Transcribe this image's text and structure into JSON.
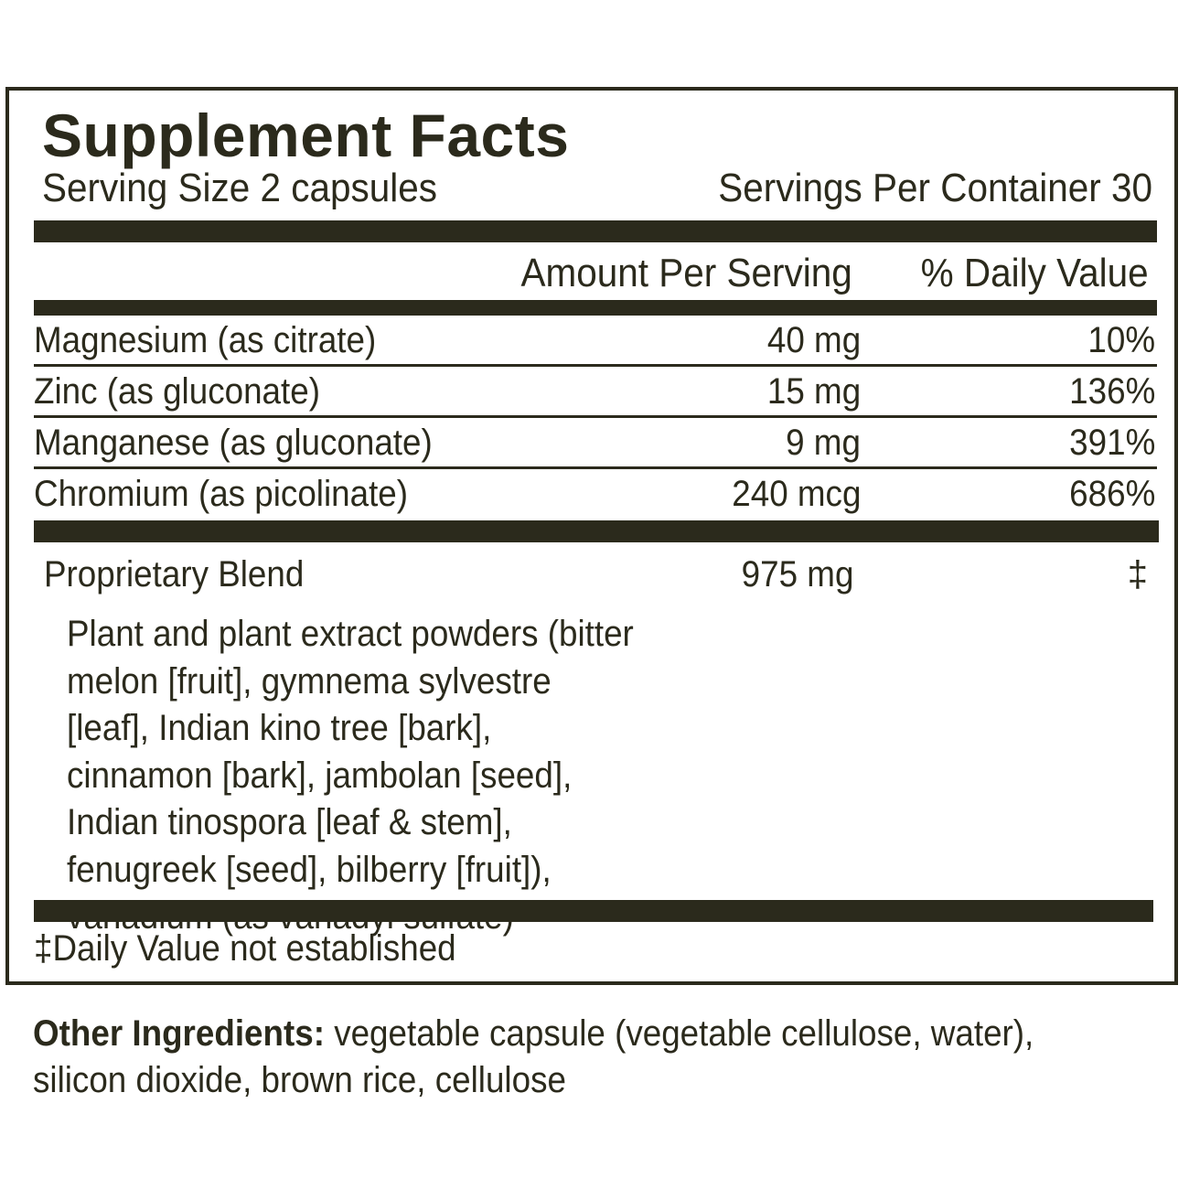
{
  "label": {
    "title": "Supplement Facts",
    "serving_size": "Serving Size 2 capsules",
    "servings_per_container": "Servings Per Container 30",
    "header_amount": "Amount Per Serving",
    "header_daily_value": "% Daily Value",
    "nutrients": [
      {
        "name": "Magnesium (as citrate)",
        "amount": "40 mg",
        "daily_value": "10%"
      },
      {
        "name": "Zinc (as gluconate)",
        "amount": "15 mg",
        "daily_value": "136%"
      },
      {
        "name": "Manganese (as gluconate)",
        "amount": "9 mg",
        "daily_value": "391%"
      },
      {
        "name": "Chromium (as picolinate)",
        "amount": "240 mcg",
        "daily_value": "686%"
      }
    ],
    "blend": {
      "name": "Proprietary Blend",
      "amount": "975 mg",
      "daily_value": "‡",
      "description": "Plant and plant extract powders (bitter melon [fruit], gymnema sylvestre [leaf], Indian kino tree [bark], cinnamon [bark], jambolan [seed], Indian tinospora [leaf & stem], fenugreek [seed], bilberry [fruit]), vanadium (as vanadyl sulfate)"
    },
    "footnote": "‡Daily Value not established"
  },
  "other_ingredients": {
    "lead": "Other Ingredients:",
    "text": " vegetable capsule (vegetable cellulose, water), silicon dioxide, brown rice, cellulose"
  },
  "colors": {
    "ink": "#2b2a1c",
    "background": "#ffffff"
  }
}
